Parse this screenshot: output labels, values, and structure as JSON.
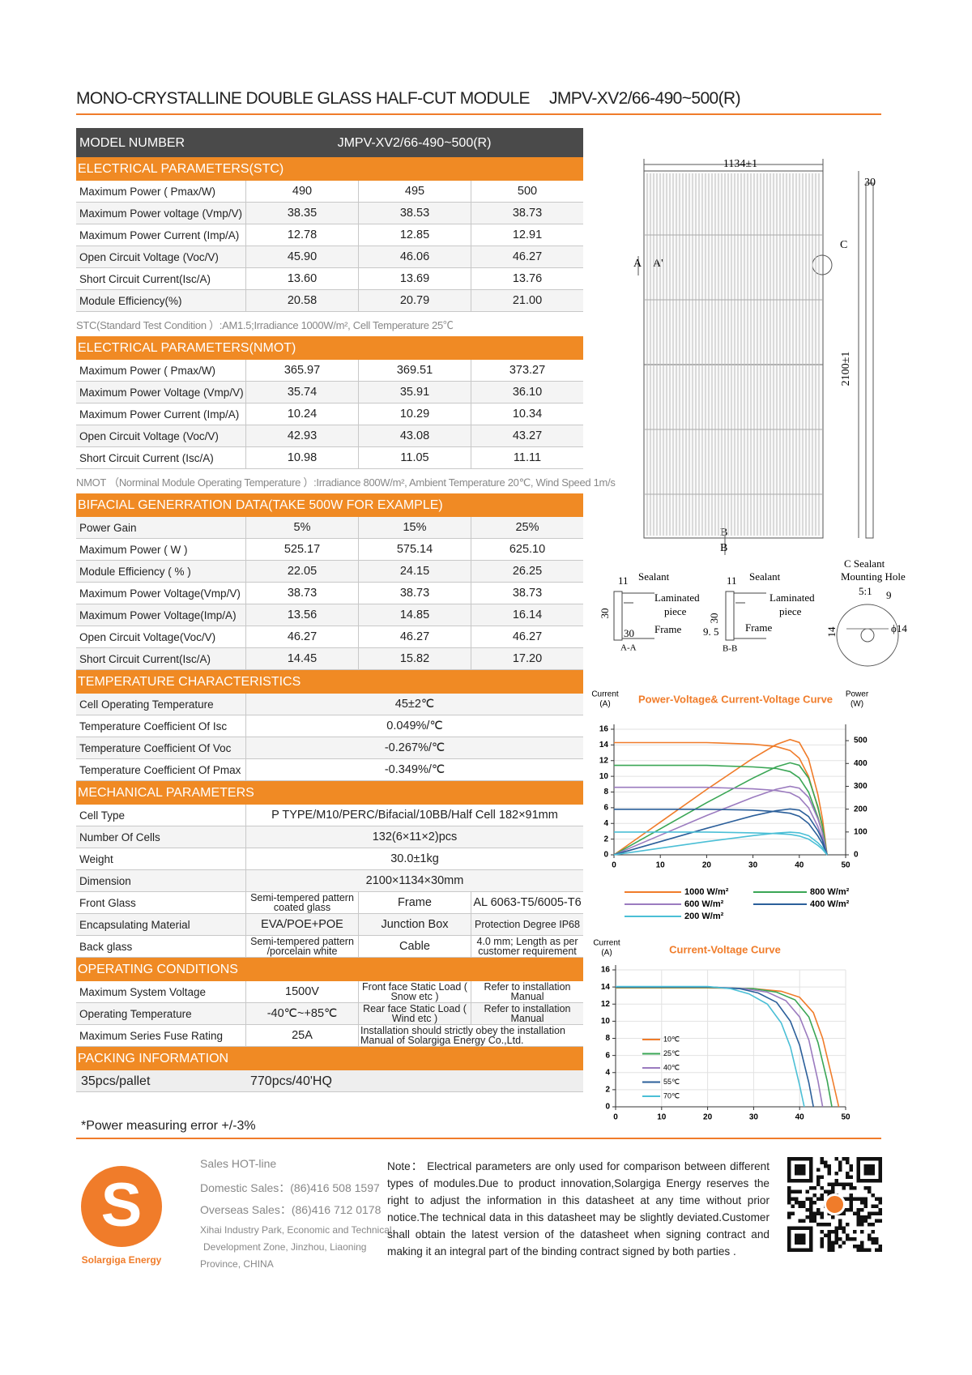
{
  "header": {
    "title": "MONO-CRYSTALLINE DOUBLE GLASS HALF-CUT MODULE",
    "model": "JMPV-XV2/66-490~500(R)"
  },
  "table": {
    "header": [
      "MODEL NUMBER",
      "JMPV-XV2/66-490~500(R)"
    ],
    "sections": [
      {
        "title": "ELECTRICAL PARAMETERS(STC)",
        "rows": [
          [
            "Maximum Power ( Pmax/W)",
            "490",
            "495",
            "500"
          ],
          [
            "Maximum Power voltage (Vmp/V)",
            "38.35",
            "38.53",
            "38.73"
          ],
          [
            "Maximum Power Current (Imp/A)",
            "12.78",
            "12.85",
            "12.91"
          ],
          [
            "Open Circuit Voltage (Voc/V)",
            "45.90",
            "46.06",
            "46.27"
          ],
          [
            "Short Circuit Current(Isc/A)",
            "13.60",
            "13.69",
            "13.76"
          ],
          [
            "Module Efficiency(%)",
            "20.58",
            "20.79",
            "21.00"
          ]
        ],
        "note": "STC(Standard Test Condition ）:AM1.5;Irradiance 1000W/m²,  Cell Temperature  25℃"
      },
      {
        "title": "ELECTRICAL PARAMETERS(NMOT)",
        "rows": [
          [
            "Maximum Power ( Pmax/W)",
            "365.97",
            "369.51",
            "373.27"
          ],
          [
            "Maximum Power Voltage (Vmp/V)",
            "35.74",
            "35.91",
            "36.10"
          ],
          [
            "Maximum Power Current (Imp/A)",
            "10.24",
            "10.29",
            "10.34"
          ],
          [
            "Open Circuit Voltage (Voc/V)",
            "42.93",
            "43.08",
            "43.27"
          ],
          [
            "Short Circuit Current (Isc/A)",
            "10.98",
            "11.05",
            "11.11"
          ]
        ],
        "note": "NMOT （Norminal Module Operating Temperature ）:Irradiance 800W/m²,  Ambient Temperature 20℃,  Wind Speed 1m/s"
      },
      {
        "title": "BIFACIAL GENERRATION DATA(TAKE 500W FOR EXAMPLE)",
        "rows": [
          [
            "Power Gain",
            "5%",
            "15%",
            "25%"
          ],
          [
            "Maximum Power ( W )",
            "525.17",
            "575.14",
            "625.10"
          ],
          [
            "Module Efficiency ( % )",
            "22.05",
            "24.15",
            "26.25"
          ],
          [
            "Maximum Power Voltage(Vmp/V)",
            "38.73",
            "38.73",
            "38.73"
          ],
          [
            "Maximum Power Voltage(Imp/A)",
            "13.56",
            "14.85",
            "16.14"
          ],
          [
            "Open Circuit Voltage(Voc/V)",
            "46.27",
            "46.27",
            "46.27"
          ],
          [
            "Short Circuit Current(Isc/A)",
            "14.45",
            "15.82",
            "17.20"
          ]
        ]
      },
      {
        "title": "TEMPERATURE CHARACTERISTICS",
        "rows": [
          [
            "Cell Operating Temperature",
            "45±2℃"
          ],
          [
            "Temperature Coefficient Of Isc",
            "0.049%/℃"
          ],
          [
            "Temperature Coefficient Of Voc",
            "-0.267%/℃"
          ],
          [
            "Temperature Coefficient Of Pmax",
            "-0.349%/℃"
          ]
        ]
      },
      {
        "title": "MECHANICAL PARAMETERS",
        "rows": [
          [
            "Cell Type",
            "P TYPE/M10/PERC/Bifacial/10BB/Half Cell 182×91mm"
          ],
          [
            "Number Of Cells",
            "132(6×11×2)pcs"
          ],
          [
            "Weight",
            "30.0±1kg"
          ],
          [
            "Dimension",
            "2100×1134×30mm"
          ],
          [
            "Front Glass",
            "Semi-tempered pattern coated glass",
            "Frame",
            "AL 6063-T5/6005-T6"
          ],
          [
            "Encapsulating Material",
            "EVA/POE+POE",
            "Junction Box",
            "Protection Degree IP68"
          ],
          [
            "Back glass",
            "Semi-tempered pattern /porcelain white",
            "Cable",
            "4.0 mm;  Length as per customer requirement"
          ]
        ]
      },
      {
        "title": "OPERATING CONDITIONS",
        "rows": [
          [
            "Maximum System Voltage",
            "1500V",
            "Front face Static Load ( Snow etc )",
            "Refer to installation Manual"
          ],
          [
            "Operating Temperature",
            "-40℃~+85℃",
            "Rear face Static Load ( Wind etc )",
            "Refer to installation Manual"
          ],
          [
            "Maximum Series Fuse Rating",
            "25A",
            "Installation should strictly obey the installation Manual of Solargiga  Energy Co.,Ltd."
          ]
        ]
      },
      {
        "title": "PACKING INFORMATION",
        "rows": [
          [
            "35pcs/pallet",
            "770pcs/40'HQ"
          ]
        ]
      }
    ]
  },
  "footnote": "*Power measuring error  +/-3%",
  "drawing": {
    "labels": [
      "1134±1",
      "30",
      "2100±1",
      "C",
      "A",
      "A'",
      "B",
      "B",
      "11",
      "Sealant",
      "Laminated",
      "piece",
      "30",
      "30",
      "Frame",
      "A-A",
      "11",
      "Sealant",
      "Laminated",
      "piece",
      "30",
      "9. 5",
      "Frame",
      "B-B",
      "C Sealant",
      "Mounting Hole",
      "5:1",
      "9",
      "14",
      "ϕ14"
    ]
  },
  "chart_data": [
    {
      "type": "line",
      "title": "Power-Voltage& Current-Voltage Curve",
      "y_label": [
        "Current",
        "(A)"
      ],
      "y2_label": [
        "Power",
        "(W)"
      ],
      "x": [
        0,
        10,
        20,
        30,
        35,
        38,
        40,
        42,
        44,
        45,
        46
      ],
      "xlim": [
        0,
        50
      ],
      "ylim": [
        0,
        16
      ],
      "y2lim": [
        0,
        550
      ],
      "xticks": [
        0,
        10,
        20,
        30,
        40,
        50
      ],
      "yticks": [
        0,
        2,
        4,
        6,
        8,
        10,
        12,
        14,
        16
      ],
      "y2ticks": [
        0,
        100,
        200,
        300,
        400,
        500
      ],
      "grid": true,
      "series": [
        {
          "name": "1000 W/m²",
          "color": "#f07c2a",
          "values": [
            14.3,
            14.3,
            14.3,
            14.1,
            13.8,
            13.3,
            12.3,
            10,
            6,
            3.5,
            0
          ],
          "power_values": [
            0,
            143,
            286,
            423,
            483,
            505,
            492,
            420,
            264,
            158,
            0
          ]
        },
        {
          "name": "800 W/m²",
          "color": "#3aa655",
          "values": [
            11.4,
            11.4,
            11.4,
            11.2,
            11.0,
            10.6,
            9.8,
            8.0,
            4.8,
            2.8,
            0
          ],
          "power_values": [
            0,
            114,
            228,
            336,
            385,
            403,
            392,
            336,
            211,
            126,
            0
          ]
        },
        {
          "name": "600 W/m²",
          "color": "#9b7bbf",
          "values": [
            8.6,
            8.6,
            8.6,
            8.4,
            8.2,
            7.9,
            7.3,
            6.0,
            3.6,
            2.1,
            0
          ],
          "power_values": [
            0,
            86,
            172,
            252,
            287,
            300,
            292,
            252,
            158,
            95,
            0
          ]
        },
        {
          "name": "400 W/m²",
          "color": "#2b5f9a",
          "values": [
            5.8,
            5.8,
            5.8,
            5.7,
            5.5,
            5.3,
            4.9,
            4.0,
            2.4,
            1.4,
            0
          ],
          "power_values": [
            0,
            58,
            116,
            171,
            193,
            201,
            196,
            168,
            106,
            63,
            0
          ]
        },
        {
          "name": "200 W/m²",
          "color": "#4bbfd6",
          "values": [
            2.9,
            2.9,
            2.9,
            2.8,
            2.7,
            2.6,
            2.4,
            2.0,
            1.2,
            0.7,
            0
          ],
          "power_values": [
            0,
            29,
            58,
            84,
            95,
            99,
            96,
            84,
            53,
            32,
            0
          ]
        }
      ]
    },
    {
      "type": "line",
      "title": "Current-Voltage Curve",
      "y_label": [
        "Current",
        "(A)"
      ],
      "xlim": [
        0,
        50
      ],
      "ylim": [
        0,
        16
      ],
      "xticks": [
        0,
        10,
        20,
        30,
        40,
        50
      ],
      "yticks": [
        0,
        2,
        4,
        6,
        8,
        10,
        12,
        14,
        16
      ],
      "grid": true,
      "series": [
        {
          "name": "10℃",
          "color": "#f07c2a",
          "x": [
            0,
            20,
            30,
            36,
            40,
            43,
            45,
            47,
            48.5
          ],
          "values": [
            13.9,
            13.9,
            13.8,
            13.5,
            12.8,
            11,
            8,
            3.5,
            0
          ]
        },
        {
          "name": "25℃",
          "color": "#3aa655",
          "x": [
            0,
            20,
            30,
            35,
            39,
            42,
            44,
            46,
            47
          ],
          "values": [
            13.95,
            13.95,
            13.8,
            13.4,
            12.5,
            10.5,
            7.5,
            3,
            0
          ]
        },
        {
          "name": "40℃",
          "color": "#9b7bbf",
          "x": [
            0,
            20,
            28,
            33,
            37,
            40,
            42,
            44,
            45
          ],
          "values": [
            14,
            14,
            13.8,
            13.4,
            12.4,
            10.5,
            7.8,
            3,
            0
          ]
        },
        {
          "name": "55℃",
          "color": "#2b5f9a",
          "x": [
            0,
            20,
            27,
            31,
            35,
            38,
            40,
            42,
            43
          ],
          "values": [
            14,
            14,
            13.8,
            13.3,
            12.2,
            10,
            7.2,
            2.8,
            0
          ]
        },
        {
          "name": "70℃",
          "color": "#4bbfd6",
          "x": [
            0,
            20,
            25,
            29,
            33,
            36,
            38,
            40,
            41
          ],
          "values": [
            14.05,
            14.05,
            13.8,
            13.2,
            12,
            9.8,
            7,
            2.5,
            0
          ]
        }
      ]
    }
  ],
  "footer": {
    "logo": {
      "mark": "S",
      "name": "Solargiga Energy"
    },
    "sales": [
      "Sales HOT-line",
      "Domestic Sales：(86)416 508 1597",
      "Overseas Sales：(86)416 712 0178"
    ],
    "address": [
      "Xihai Industry Park, Economic and Technical",
      "Development Zone, Jinzhou, Liaoning",
      "Province, CHINA"
    ],
    "note": "Note： Electrical parameters are only used for comparison between different types of modules.Due to product innovation,Solargiga Energy reserves the right to adjust the information in this datasheet at any time without prior notice.The technical data in this datasheet may be slightly deviated.Customer shall obtain the latest version of the datasheet when signing contract and making it an integral part of the binding contract signed by both parties ."
  }
}
